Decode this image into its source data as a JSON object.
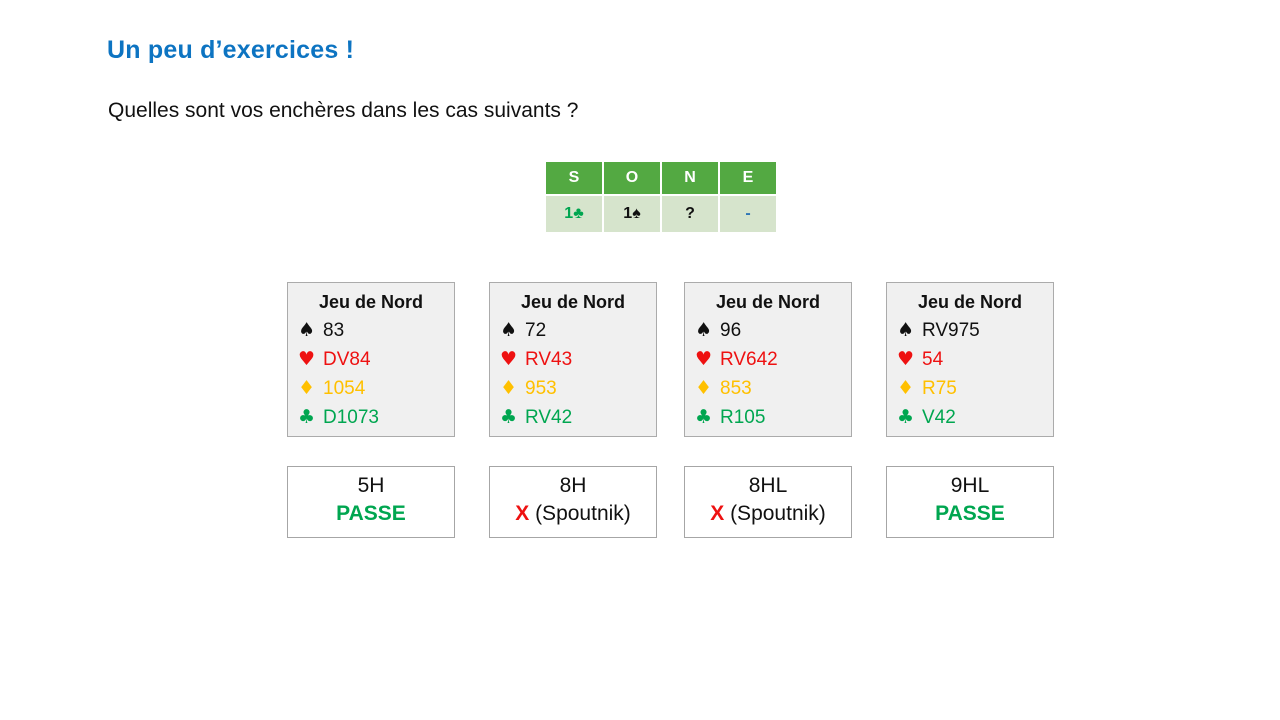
{
  "title": "Un peu d’exercices !",
  "subtitle": "Quelles sont vos enchères dans les cas suivants ?",
  "suits": {
    "spade": "♠",
    "heart": "♥",
    "diamond": "♦",
    "club": "♣"
  },
  "bidding_table": {
    "headers": [
      "S",
      "O",
      "N",
      "E"
    ],
    "row": [
      {
        "text": "1♣",
        "color": "green"
      },
      {
        "text": "1♠",
        "color": "black"
      },
      {
        "text": "?",
        "color": "black"
      },
      {
        "text": "-",
        "color": "blue"
      }
    ]
  },
  "hands": [
    {
      "title": "Jeu de Nord",
      "spades": "83",
      "hearts": "DV84",
      "diamonds": "1054",
      "clubs": "D1073"
    },
    {
      "title": "Jeu de Nord",
      "spades": "72",
      "hearts": "RV43",
      "diamonds": "953",
      "clubs": "RV42"
    },
    {
      "title": "Jeu de Nord",
      "spades": "96",
      "hearts": "RV642",
      "diamonds": "853",
      "clubs": "R105"
    },
    {
      "title": "Jeu de Nord",
      "spades": "RV975",
      "hearts": "54",
      "diamonds": "R75",
      "clubs": "V42"
    }
  ],
  "answers": [
    {
      "line1": "5H",
      "highlight": "PASSE",
      "note": "",
      "highlight_color": "green"
    },
    {
      "line1": "8H",
      "highlight": "X",
      "note": " (Spoutnik)",
      "highlight_color": "red"
    },
    {
      "line1": "8HL",
      "highlight": "X",
      "note": " (Spoutnik)",
      "highlight_color": "red"
    },
    {
      "line1": "9HL",
      "highlight": "PASSE",
      "note": "",
      "highlight_color": "green"
    }
  ],
  "colors": {
    "title_blue": "#0d74c2",
    "table_header_green": "#53a942",
    "table_row_green": "#d6e4cc",
    "bid_green": "#00a650",
    "bid_blue": "#2e75b6",
    "suit_red": "#ee1111",
    "suit_gold": "#ffc000",
    "suit_green": "#00a650",
    "hand_box_bg": "#f0f0f0",
    "box_border": "#a6a6a6",
    "text_black": "#111111"
  }
}
